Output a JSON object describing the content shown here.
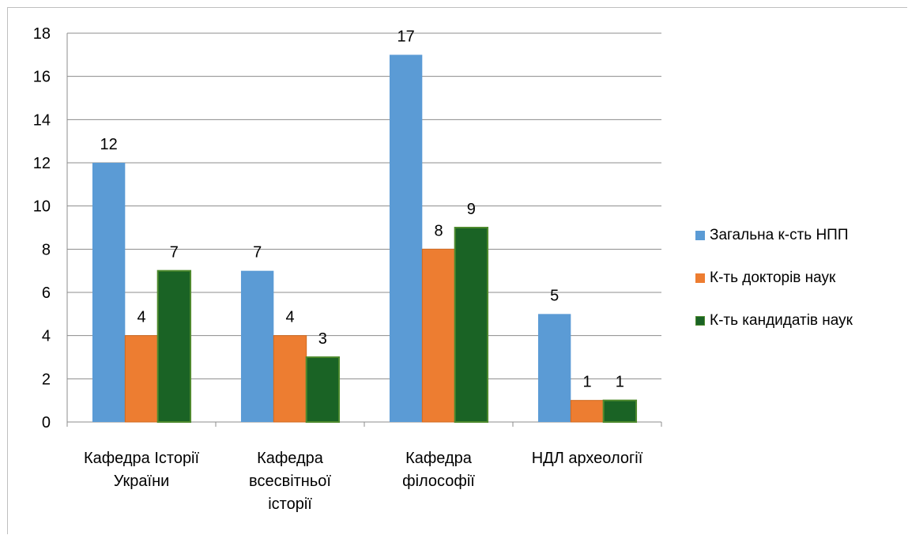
{
  "chart_data": {
    "type": "bar",
    "title": "",
    "xlabel": "",
    "ylabel": "",
    "ylim": [
      0,
      18
    ],
    "yticks": [
      0,
      2,
      4,
      6,
      8,
      10,
      12,
      14,
      16,
      18
    ],
    "grid": true,
    "legend_position": "right",
    "categories": [
      [
        "Кафедра Історії",
        "України"
      ],
      [
        "Кафедра",
        "всесвітньої",
        "історії"
      ],
      [
        "Кафедра",
        "філософії"
      ],
      [
        "НДЛ археології"
      ]
    ],
    "series": [
      {
        "name": "Загальна к-сть НПП",
        "color": "#5b9bd5",
        "values": [
          12,
          7,
          17,
          5
        ]
      },
      {
        "name": "К-ть докторів наук",
        "color": "#ed7d31",
        "values": [
          4,
          4,
          8,
          1
        ]
      },
      {
        "name": "К-ть кандидатів наук",
        "color": "#1a6325",
        "values": [
          7,
          3,
          9,
          1
        ]
      }
    ]
  }
}
